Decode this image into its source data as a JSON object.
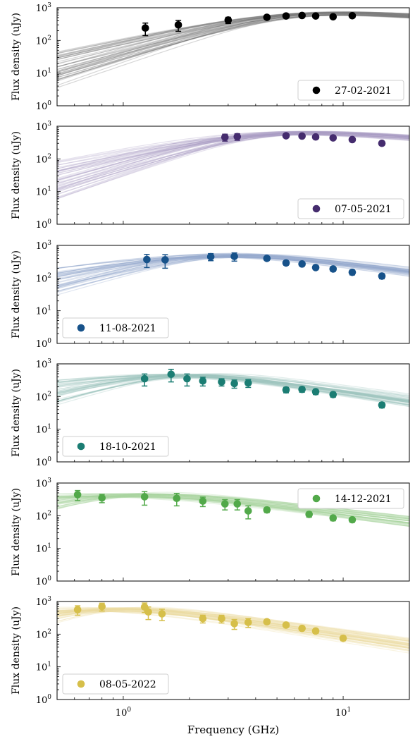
{
  "figure": {
    "xlabel": "Frequency (GHz)",
    "ylabel": "Flux density (uJy)"
  },
  "chart_data": [
    {
      "type": "scatter",
      "series_name": "27-02-2021",
      "color": "#000000",
      "model_color": "#7a7a7a",
      "legend": "bottom-right",
      "model": {
        "peak_freq": 5.5,
        "peak_flux": 560,
        "low_index_min": 1.3,
        "low_index_max": 2.4,
        "high_index": -0.5
      },
      "points": [
        {
          "x": 1.26,
          "y": 240,
          "err": 100
        },
        {
          "x": 1.78,
          "y": 300,
          "err": 110
        },
        {
          "x": 3.0,
          "y": 420,
          "err": 90
        },
        {
          "x": 4.5,
          "y": 510,
          "err": 30
        },
        {
          "x": 5.5,
          "y": 560,
          "err": 30
        },
        {
          "x": 6.5,
          "y": 580,
          "err": 30
        },
        {
          "x": 7.5,
          "y": 560,
          "err": 30
        },
        {
          "x": 9.0,
          "y": 530,
          "err": 30
        },
        {
          "x": 11.0,
          "y": 570,
          "err": 30
        }
      ]
    },
    {
      "type": "scatter",
      "series_name": "07-05-2021",
      "color": "#452c6e",
      "model_color": "#a99bc4",
      "legend": "bottom-right",
      "model": {
        "peak_freq": 4.0,
        "peak_flux": 520,
        "low_index_min": 1.2,
        "low_index_max": 2.4,
        "high_index": -0.5
      },
      "points": [
        {
          "x": 2.9,
          "y": 460,
          "err": 110
        },
        {
          "x": 3.3,
          "y": 480,
          "err": 110
        },
        {
          "x": 5.5,
          "y": 510,
          "err": 40
        },
        {
          "x": 6.5,
          "y": 500,
          "err": 40
        },
        {
          "x": 7.5,
          "y": 470,
          "err": 40
        },
        {
          "x": 9.0,
          "y": 440,
          "err": 40
        },
        {
          "x": 11.0,
          "y": 390,
          "err": 40
        },
        {
          "x": 15.0,
          "y": 300,
          "err": 40
        }
      ]
    },
    {
      "type": "scatter",
      "series_name": "11-08-2021",
      "color": "#17528a",
      "model_color": "#96a8cc",
      "legend": "bottom-left",
      "model": {
        "peak_freq": 2.6,
        "peak_flux": 470,
        "low_index_min": 0.9,
        "low_index_max": 2.0,
        "high_index": -0.85
      },
      "points": [
        {
          "x": 1.28,
          "y": 370,
          "err": 160
        },
        {
          "x": 1.55,
          "y": 360,
          "err": 160
        },
        {
          "x": 2.5,
          "y": 450,
          "err": 110
        },
        {
          "x": 3.2,
          "y": 460,
          "err": 130
        },
        {
          "x": 4.5,
          "y": 400,
          "err": 50
        },
        {
          "x": 5.5,
          "y": 290,
          "err": 40
        },
        {
          "x": 6.5,
          "y": 270,
          "err": 40
        },
        {
          "x": 7.5,
          "y": 210,
          "err": 30
        },
        {
          "x": 9.0,
          "y": 190,
          "err": 30
        },
        {
          "x": 11.0,
          "y": 150,
          "err": 25
        },
        {
          "x": 15.0,
          "y": 115,
          "err": 20
        }
      ]
    },
    {
      "type": "scatter",
      "series_name": "18-10-2021",
      "color": "#1b7d73",
      "model_color": "#9cc4bc",
      "legend": "bottom-left",
      "model": {
        "peak_freq": 1.7,
        "peak_flux": 420,
        "low_index_min": 0.7,
        "low_index_max": 2.0,
        "high_index": -1.0
      },
      "points": [
        {
          "x": 1.25,
          "y": 350,
          "err": 140
        },
        {
          "x": 1.65,
          "y": 480,
          "err": 200
        },
        {
          "x": 1.95,
          "y": 350,
          "err": 140
        },
        {
          "x": 2.3,
          "y": 300,
          "err": 90
        },
        {
          "x": 2.8,
          "y": 280,
          "err": 70
        },
        {
          "x": 3.2,
          "y": 250,
          "err": 70
        },
        {
          "x": 3.7,
          "y": 260,
          "err": 70
        },
        {
          "x": 5.5,
          "y": 160,
          "err": 30
        },
        {
          "x": 6.5,
          "y": 165,
          "err": 30
        },
        {
          "x": 7.5,
          "y": 140,
          "err": 25
        },
        {
          "x": 9.0,
          "y": 115,
          "err": 20
        },
        {
          "x": 15.0,
          "y": 55,
          "err": 10
        }
      ]
    },
    {
      "type": "scatter",
      "series_name": "14-12-2021",
      "color": "#52a94a",
      "model_color": "#a9d49f",
      "legend": "top-right",
      "model": {
        "peak_freq": 1.0,
        "peak_flux": 420,
        "low_index_min": 0.5,
        "low_index_max": 2.2,
        "high_index": -0.85
      },
      "points": [
        {
          "x": 0.62,
          "y": 440,
          "err": 150
        },
        {
          "x": 0.8,
          "y": 350,
          "err": 100
        },
        {
          "x": 1.25,
          "y": 380,
          "err": 170
        },
        {
          "x": 1.75,
          "y": 340,
          "err": 140
        },
        {
          "x": 2.3,
          "y": 280,
          "err": 90
        },
        {
          "x": 2.9,
          "y": 230,
          "err": 80
        },
        {
          "x": 3.3,
          "y": 230,
          "err": 80
        },
        {
          "x": 3.7,
          "y": 140,
          "err": 60
        },
        {
          "x": 4.5,
          "y": 150,
          "err": 25
        },
        {
          "x": 7.0,
          "y": 110,
          "err": 20
        },
        {
          "x": 9.0,
          "y": 85,
          "err": 15
        },
        {
          "x": 11.0,
          "y": 75,
          "err": 12
        }
      ]
    },
    {
      "type": "scatter",
      "series_name": "08-05-2022",
      "color": "#d6bf4a",
      "model_color": "#ead9a0",
      "legend": "bottom-left",
      "model": {
        "peak_freq": 0.85,
        "peak_flux": 560,
        "low_index_min": 0.5,
        "low_index_max": 2.2,
        "high_index": -1.0
      },
      "points": [
        {
          "x": 0.62,
          "y": 560,
          "err": 180
        },
        {
          "x": 0.8,
          "y": 700,
          "err": 190
        },
        {
          "x": 1.25,
          "y": 680,
          "err": 220
        },
        {
          "x": 1.3,
          "y": 480,
          "err": 200
        },
        {
          "x": 1.5,
          "y": 420,
          "err": 160
        },
        {
          "x": 2.3,
          "y": 300,
          "err": 80
        },
        {
          "x": 2.8,
          "y": 300,
          "err": 80
        },
        {
          "x": 3.2,
          "y": 210,
          "err": 70
        },
        {
          "x": 3.7,
          "y": 230,
          "err": 70
        },
        {
          "x": 4.5,
          "y": 240,
          "err": 30
        },
        {
          "x": 5.5,
          "y": 190,
          "err": 25
        },
        {
          "x": 6.5,
          "y": 150,
          "err": 20
        },
        {
          "x": 7.5,
          "y": 125,
          "err": 20
        },
        {
          "x": 10.0,
          "y": 75,
          "err": 12
        }
      ]
    }
  ],
  "axes": {
    "x_range": [
      0.5,
      20
    ],
    "y_range": [
      1,
      1000
    ],
    "x_scale": "log",
    "y_scale": "log",
    "x_ticks": [
      {
        "value": 1,
        "label": "10",
        "exp": "0"
      },
      {
        "value": 10,
        "label": "10",
        "exp": "1"
      }
    ],
    "y_ticks": [
      {
        "value": 1,
        "label": "10",
        "exp": "0"
      },
      {
        "value": 10,
        "label": "10",
        "exp": "1"
      },
      {
        "value": 100,
        "label": "10",
        "exp": "2"
      },
      {
        "value": 1000,
        "label": "10",
        "exp": "3"
      }
    ],
    "grid": false
  }
}
